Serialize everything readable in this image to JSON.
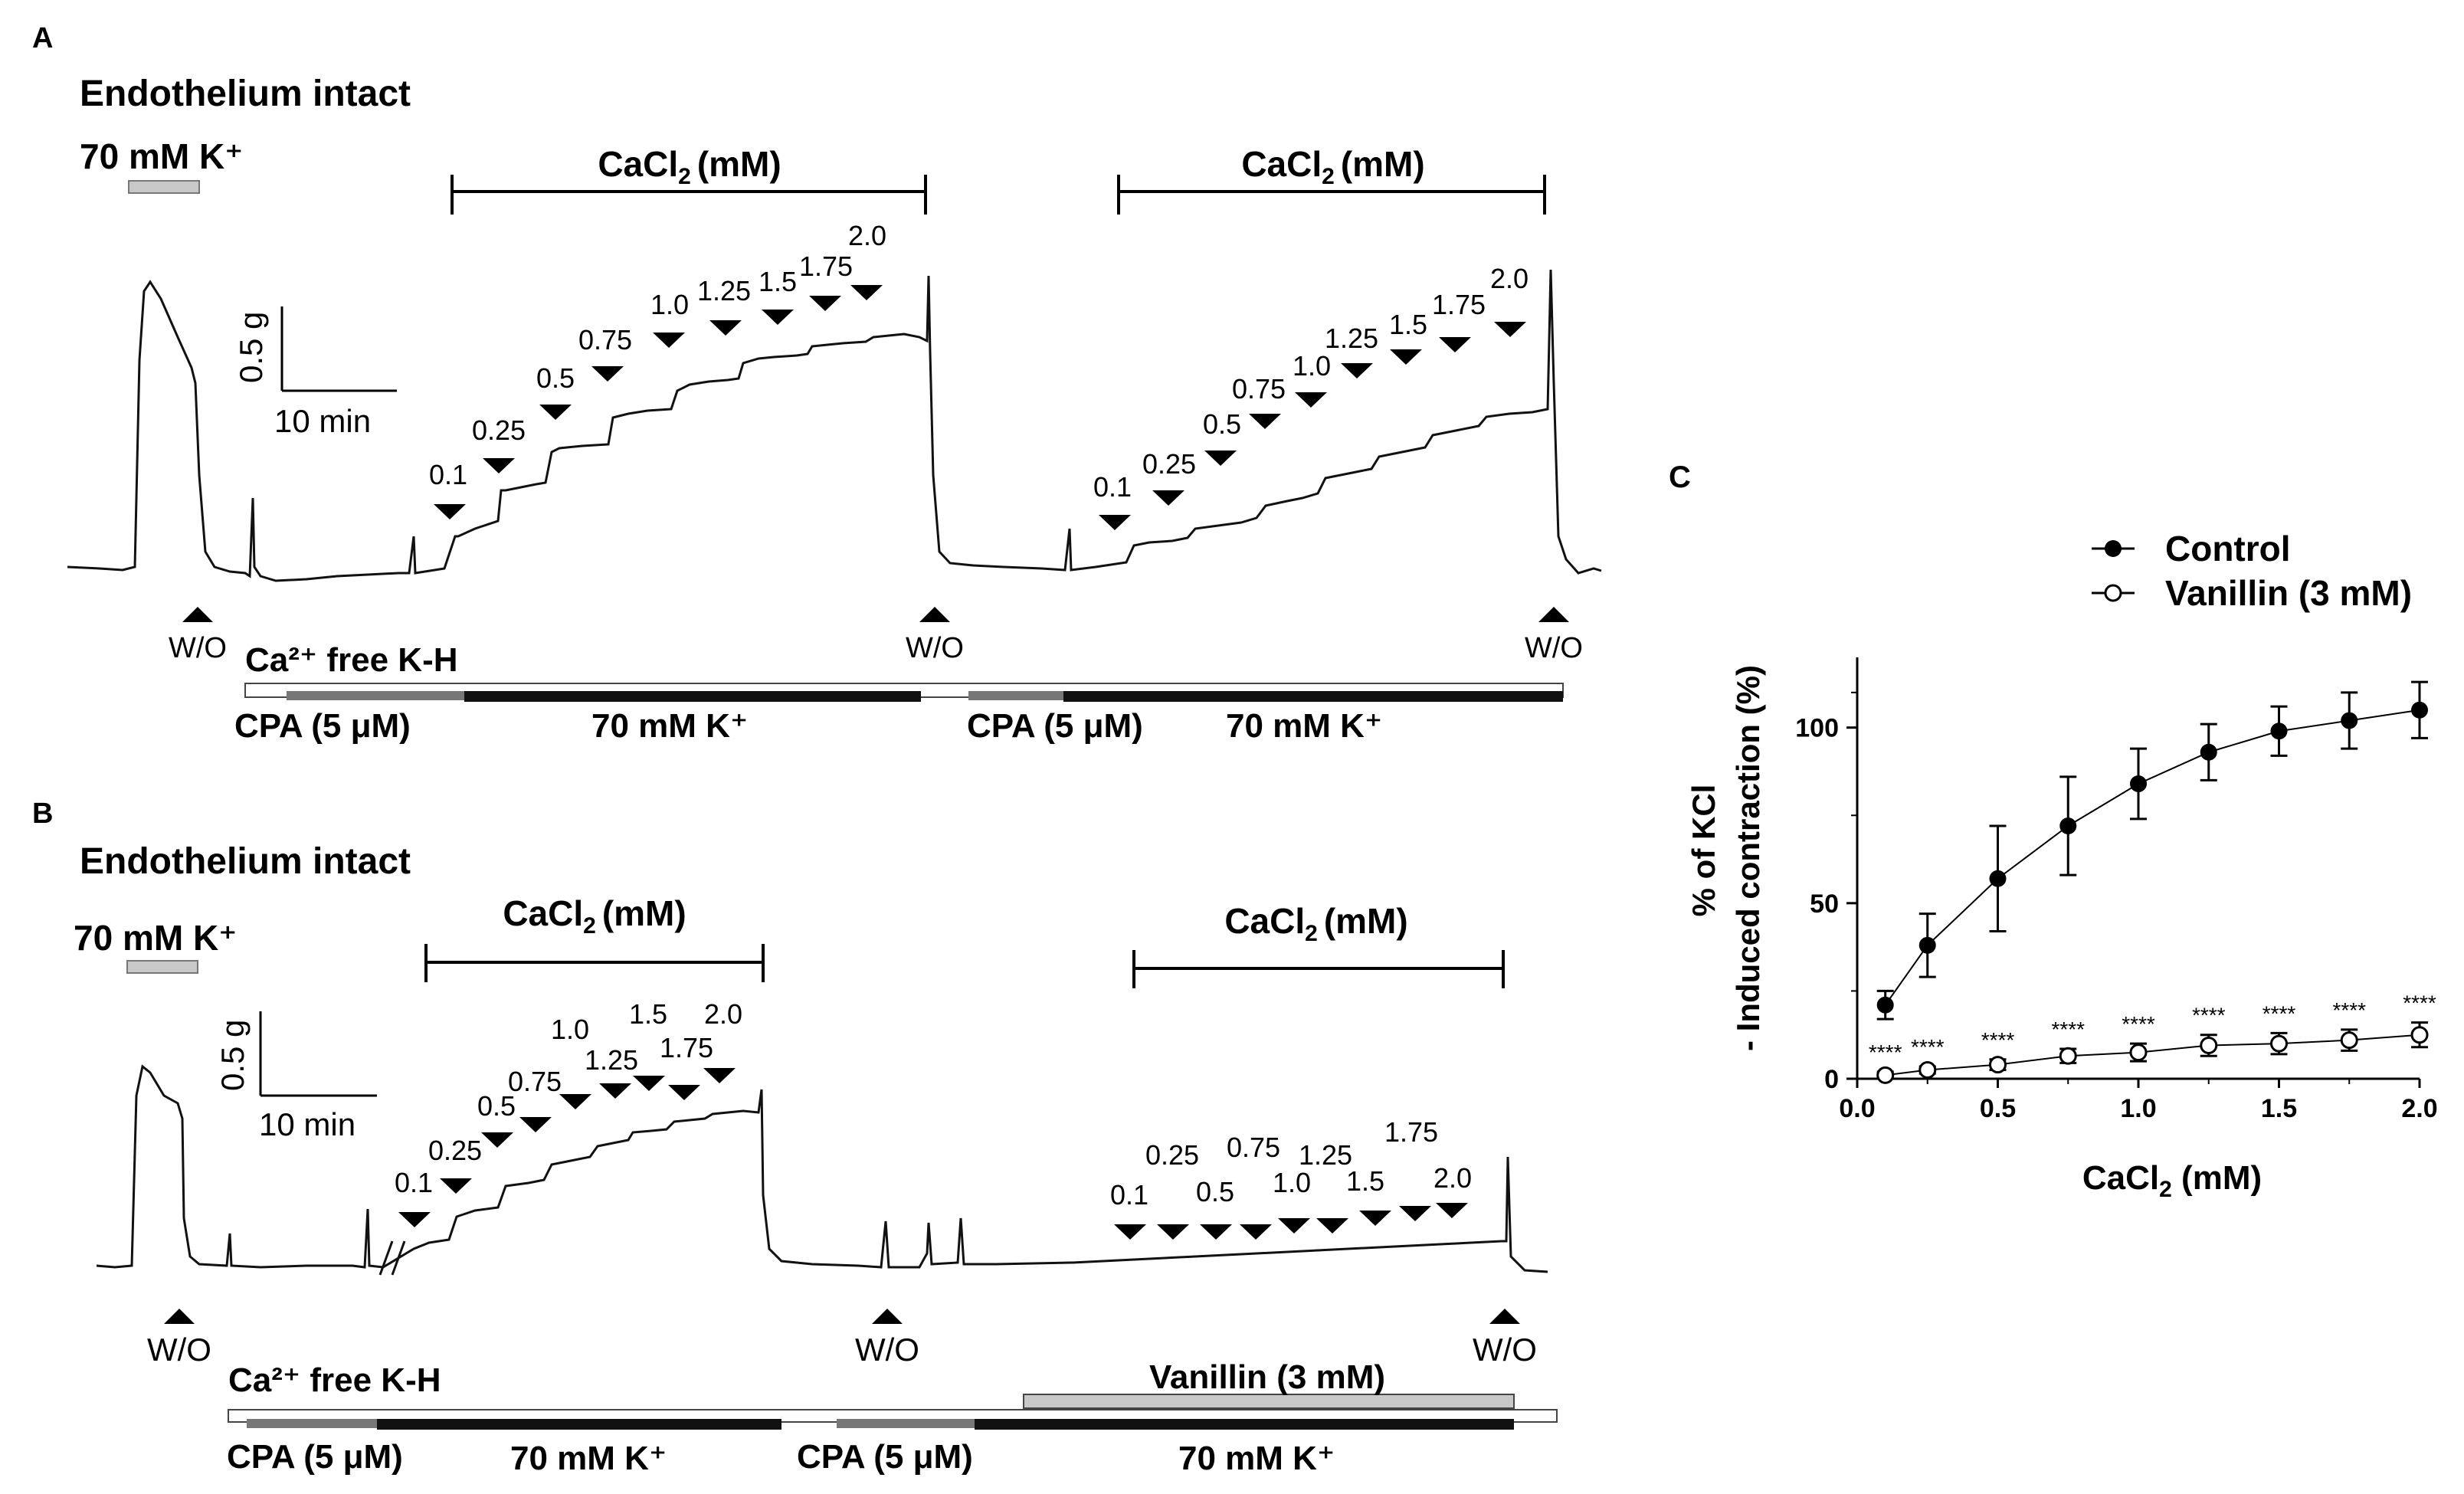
{
  "panels": {
    "A": {
      "letter": "A",
      "title": "Endothelium intact",
      "k_label": "70 mM K⁺",
      "cacl_label_1": "CaCl",
      "cacl_label_2": "CaCl",
      "cacl_sub": "2",
      "cacl_unit": "(mM)",
      "scale_y": "0.5 g",
      "scale_x": "10 min",
      "doses_1": [
        "0.1",
        "0.25",
        "0.5",
        "0.75",
        "1.0",
        "1.25",
        "1.5",
        "1.75",
        "2.0"
      ],
      "doses_2": [
        "0.1",
        "0.25",
        "0.5",
        "0.75",
        "1.0",
        "1.25",
        "1.5",
        "1.75",
        "2.0"
      ],
      "wo": "W/O",
      "ca_free": "Ca²⁺ free K-H",
      "cpa_1": "CPA (5 μM)",
      "k_bar_1": "70 mM K⁺",
      "cpa_2": "CPA (5 μM)",
      "k_bar_2": "70 mM K⁺"
    },
    "B": {
      "letter": "B",
      "title": "Endothelium intact",
      "k_label": "70 mM K⁺",
      "cacl_label_1": "CaCl",
      "cacl_label_2": "CaCl",
      "cacl_sub": "2",
      "cacl_unit": "(mM)",
      "scale_y": "0.5 g",
      "scale_x": "10 min",
      "doses_1": [
        "0.1",
        "0.25",
        "0.5",
        "0.75",
        "1.0",
        "1.25",
        "1.5",
        "1.75",
        "2.0"
      ],
      "doses_2": [
        "0.1",
        "0.25",
        "0.5",
        "0.75",
        "1.0",
        "1.25",
        "1.5",
        "1.75",
        "2.0"
      ],
      "wo": "W/O",
      "ca_free": "Ca²⁺ free K-H",
      "vanillin": "Vanillin (3 mM)",
      "cpa_1": "CPA (5 μM)",
      "k_bar_1": "70 mM K⁺",
      "cpa_2": "CPA (5 μM)",
      "k_bar_2": "70 mM K⁺"
    }
  },
  "chart_data": {
    "type": "line",
    "panel_letter": "C",
    "x": [
      0.1,
      0.25,
      0.5,
      0.75,
      1.0,
      1.25,
      1.5,
      1.75,
      2.0
    ],
    "series": [
      {
        "name": "Control",
        "values": [
          21,
          38,
          57,
          72,
          84,
          93,
          99,
          102,
          105
        ],
        "errors": [
          4,
          9,
          15,
          14,
          10,
          8,
          7,
          8,
          8
        ],
        "marker": "filled-circle",
        "color": "#000000"
      },
      {
        "name": "Vanillin (3 mM)",
        "values": [
          1,
          2.5,
          4,
          6.5,
          7.5,
          9.5,
          10,
          11,
          12.5
        ],
        "errors": [
          1,
          1,
          1.5,
          2,
          2.5,
          3,
          3,
          3,
          3.5
        ],
        "marker": "open-circle",
        "color": "#000000"
      }
    ],
    "significance": [
      "****",
      "****",
      "****",
      "****",
      "****",
      "****",
      "****",
      "****",
      "****"
    ],
    "xlabel_main": "CaCl",
    "xlabel_sub": "2",
    "xlabel_unit": " (mM)",
    "ylabel_line1": "% of KCl",
    "ylabel_line2": "- Induced  contraction  (%)",
    "xlim": [
      0,
      2.0
    ],
    "ylim": [
      0,
      120
    ],
    "xticks": [
      "0.0",
      "0.5",
      "1.0",
      "1.5",
      "2.0"
    ],
    "yticks": [
      "0",
      "50",
      "100"
    ],
    "legend_position": "top-right"
  }
}
